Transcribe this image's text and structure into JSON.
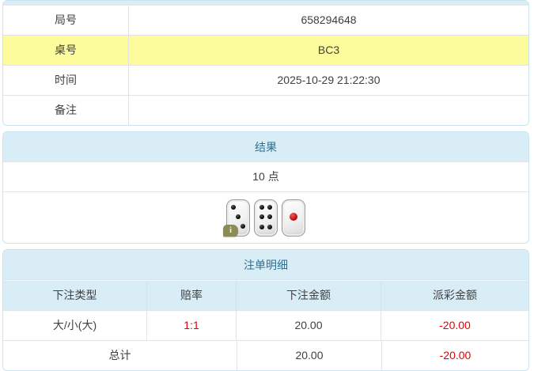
{
  "colors": {
    "header_bg": "#d9edf7",
    "header_text": "#31708f",
    "highlight_row_bg": "#fcfc9c",
    "negative_text": "#e60000",
    "card_border": "#c9e4f0",
    "body_text": "#404040"
  },
  "info_table": {
    "rows": [
      {
        "label": "局号",
        "value": "658294648"
      },
      {
        "label": "桌号",
        "value": "BC3"
      },
      {
        "label": "时间",
        "value": "2025-10-29 21:22:30"
      },
      {
        "label": "备注",
        "value": ""
      }
    ]
  },
  "result_section": {
    "title": "结果",
    "points": "10 点",
    "dice": [
      3,
      6,
      1
    ],
    "info_badge": "i"
  },
  "bet_section": {
    "title": "注单明细",
    "columns": [
      "下注类型",
      "赔率",
      "下注金额",
      "派彩金额"
    ],
    "rows": [
      {
        "type": "大/小(大)",
        "odds": "1:1",
        "amount": "20.00",
        "payout": "-20.00"
      }
    ],
    "total": {
      "label": "总计",
      "amount": "20.00",
      "payout": "-20.00"
    }
  }
}
